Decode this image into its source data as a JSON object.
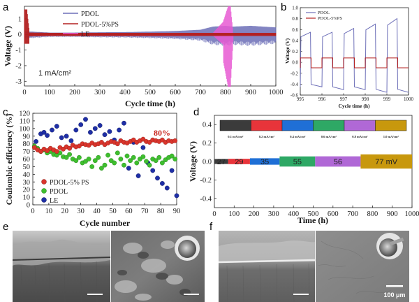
{
  "panel_labels": {
    "a": "a",
    "b": "b",
    "c": "c",
    "d": "d",
    "e": "e",
    "f": "f"
  },
  "panel_a": {
    "ylabel": "Voltage (V)",
    "xlabel": "Cycle time (h)",
    "x_ticks": [
      "0",
      "100",
      "200",
      "300",
      "400",
      "500",
      "600",
      "700",
      "800",
      "900",
      "1000"
    ],
    "y_ticks": [
      "1",
      "0",
      "-1",
      "-2",
      "-3"
    ],
    "legend": [
      "PDOL",
      "PDOL-5%PS",
      "LE"
    ],
    "current_density": "1 mA/cm²"
  },
  "panel_b": {
    "ylabel": "Voltage (V)",
    "xlabel": "Cycle time (h)",
    "x_ticks": [
      "995",
      "996",
      "997",
      "998",
      "999",
      "1000"
    ],
    "y_ticks": [
      "1.0",
      "0.8",
      "0.6",
      "0.4",
      "0.2",
      "0.0",
      "-0.2",
      "-0.4",
      "-0.6"
    ],
    "legend": [
      "PDOL",
      "PDOL-5%PS"
    ]
  },
  "panel_c": {
    "ylabel": "Coulombic efficiency (%)",
    "xlabel": "Cycle number",
    "x_ticks": [
      "0",
      "10",
      "20",
      "30",
      "40",
      "50",
      "60",
      "70",
      "80",
      "90"
    ],
    "y_ticks": [
      "0",
      "10",
      "20",
      "30",
      "40",
      "50",
      "60",
      "70",
      "80",
      "90",
      "100",
      "110",
      "120"
    ],
    "legend": [
      "PDOL-5% PS",
      "PDOL",
      "LE"
    ],
    "annotation": "80%"
  },
  "panel_d": {
    "ylabel": "Voltage (V)",
    "xlabel": "Time (h)",
    "x_ticks": [
      "0",
      "100",
      "200",
      "300",
      "400",
      "500",
      "600",
      "700",
      "800",
      "900",
      "1000"
    ],
    "y_ticks": [
      "0.4",
      "0.2",
      "0.0",
      "-0.2",
      "-0.4"
    ],
    "segments": [
      "0.1 mA/cm²",
      "0.2 mA/cm²",
      "0.4 mA/cm²",
      "0.6 mA/cm²",
      "0.8 mA/cm²",
      "1.0 mA/cm²"
    ],
    "overpotentials": [
      "27",
      "29",
      "35",
      "55",
      "56",
      "77 mV"
    ]
  },
  "panel_f": {
    "scale_bar": "100 μm"
  },
  "colors": {
    "pdol": "#6d6fb8",
    "pdol_ps": "#b32020",
    "le": "#e85ad3",
    "c_red": "#d9352c",
    "c_green": "#3fbf2f",
    "c_blue": "#1f2fa6",
    "seg": [
      "#3b3b3b",
      "#e8343a",
      "#1f6fd6",
      "#2ea865",
      "#b068d6",
      "#c8980d"
    ]
  },
  "chart_data": [
    {
      "type": "line",
      "panel": "a",
      "xlabel": "Cycle time (h)",
      "ylabel": "Voltage (V)",
      "xlim": [
        0,
        1000
      ],
      "ylim": [
        -3.3,
        1.8
      ],
      "series": [
        {
          "name": "PDOL",
          "envelope_x": [
            0,
            100,
            200,
            300,
            400,
            500,
            600,
            700,
            750,
            800,
            830,
            900,
            1000
          ],
          "envelope_upper": [
            0.2,
            0.12,
            0.12,
            0.14,
            0.15,
            0.18,
            0.22,
            0.3,
            0.5,
            0.55,
            0.5,
            0.55,
            0.45
          ]
        },
        {
          "name": "PDOL-5%PS",
          "envelope_x": [
            0,
            10,
            20,
            100,
            500,
            1000
          ],
          "envelope_upper": [
            1.6,
            1.6,
            0.12,
            0.1,
            0.1,
            0.1
          ]
        },
        {
          "name": "LE",
          "envelope_x": [
            0,
            750,
            790,
            810,
            820,
            830
          ],
          "envelope_upper": [
            0.1,
            0.1,
            0.8,
            1.8,
            1.8,
            0.1
          ]
        }
      ]
    },
    {
      "type": "line",
      "panel": "b",
      "xlabel": "Cycle time (h)",
      "ylabel": "Voltage (V)",
      "xlim": [
        995,
        1000
      ],
      "ylim": [
        -0.6,
        1.0
      ],
      "series": [
        {
          "name": "PDOL",
          "plateau_high": [
            0.55,
            0.55,
            0.62,
            0.7,
            0.8
          ],
          "plateau_low": [
            -0.45,
            -0.5,
            -0.5,
            -0.55,
            -0.55
          ]
        },
        {
          "name": "PDOL-5%PS",
          "plateau_high": [
            0.08,
            0.08,
            0.08,
            0.08,
            0.08
          ],
          "plateau_low": [
            -0.1,
            -0.1,
            -0.1,
            -0.1,
            -0.1
          ]
        }
      ]
    },
    {
      "type": "scatter",
      "panel": "c",
      "xlabel": "Cycle number",
      "ylabel": "Coulombic efficiency (%)",
      "xlim": [
        0,
        90
      ],
      "ylim": [
        0,
        120
      ],
      "series": [
        {
          "name": "PDOL-5% PS",
          "x": [
            1,
            3,
            5,
            7,
            9,
            11,
            13,
            15,
            17,
            19,
            21,
            23,
            25,
            27,
            29,
            31,
            33,
            35,
            37,
            39,
            41,
            43,
            45,
            47,
            49,
            51,
            53,
            55,
            57,
            59,
            61,
            63,
            65,
            67,
            69,
            71,
            73,
            75,
            77,
            79,
            81,
            83,
            85,
            87,
            89
          ],
          "y": [
            75,
            72,
            70,
            73,
            71,
            74,
            72,
            70,
            75,
            73,
            76,
            74,
            78,
            76,
            77,
            80,
            79,
            78,
            81,
            79,
            80,
            82,
            79,
            81,
            83,
            82,
            80,
            84,
            82,
            81,
            83,
            85,
            82,
            84,
            86,
            83,
            82,
            85,
            84,
            83,
            85,
            82,
            84,
            83,
            84
          ]
        },
        {
          "name": "PDOL",
          "x": [
            1,
            3,
            5,
            7,
            9,
            11,
            13,
            15,
            17,
            19,
            21,
            23,
            25,
            27,
            29,
            31,
            33,
            35,
            37,
            39,
            41,
            43,
            45,
            47,
            49,
            51,
            53,
            55,
            57,
            59,
            61,
            63,
            65,
            67,
            69,
            71,
            73,
            75,
            77,
            79,
            81,
            83,
            85,
            87,
            89
          ],
          "y": [
            77,
            74,
            70,
            72,
            68,
            70,
            66,
            65,
            68,
            63,
            62,
            66,
            60,
            58,
            62,
            55,
            57,
            60,
            50,
            58,
            62,
            48,
            52,
            65,
            58,
            55,
            68,
            60,
            52,
            64,
            58,
            62,
            55,
            60,
            63,
            57,
            52,
            60,
            58,
            62,
            55,
            59,
            62,
            64,
            60
          ]
        },
        {
          "name": "LE",
          "x": [
            2,
            5,
            7,
            9,
            12,
            15,
            18,
            21,
            24,
            27,
            30,
            33,
            36,
            39,
            42,
            45,
            48,
            51,
            54,
            57,
            60,
            63,
            66,
            69,
            72,
            75,
            78,
            81,
            84,
            87,
            90
          ],
          "y": [
            83,
            93,
            95,
            91,
            98,
            103,
            88,
            90,
            84,
            98,
            105,
            112,
            95,
            100,
            104,
            92,
            96,
            85,
            98,
            107,
            48,
            82,
            38,
            75,
            55,
            45,
            35,
            28,
            22,
            45,
            12
          ]
        }
      ]
    },
    {
      "type": "line",
      "panel": "d",
      "xlabel": "Time (h)",
      "ylabel": "Voltage (V)",
      "xlim": [
        0,
        1000
      ],
      "ylim": [
        -0.5,
        0.5
      ],
      "segment_ranges_h": [
        [
          0,
          70
        ],
        [
          70,
          180
        ],
        [
          180,
          330
        ],
        [
          330,
          510
        ],
        [
          510,
          740
        ],
        [
          740,
          1000
        ]
      ],
      "series": [
        {
          "name": "overpotential",
          "values_mV": [
            27,
            29,
            35,
            55,
            56,
            77
          ]
        }
      ]
    }
  ]
}
